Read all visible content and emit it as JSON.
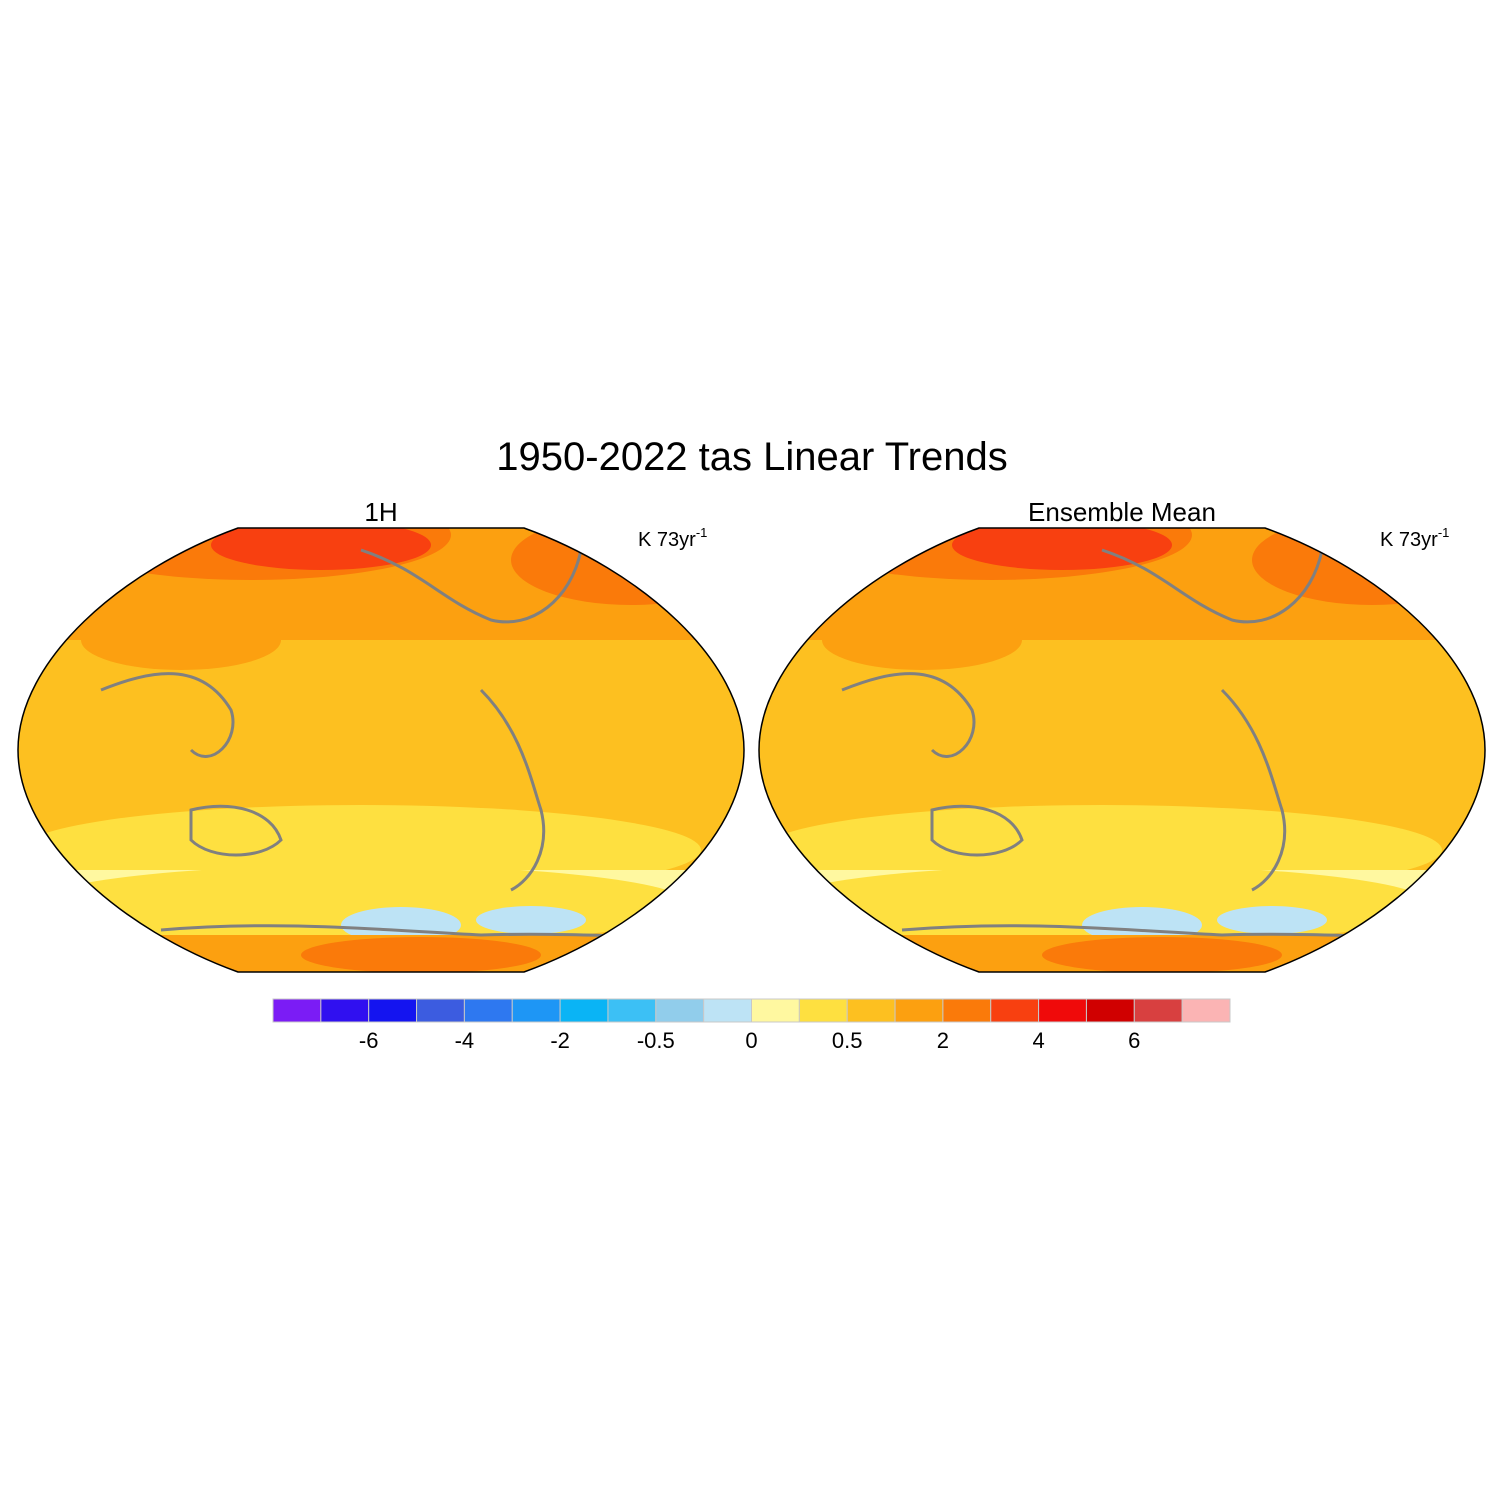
{
  "title": "1950-2022 tas Linear Trends",
  "panels": [
    {
      "title": "1H",
      "units": "K 73yr",
      "units_exponent": "-1"
    },
    {
      "title": "Ensemble Mean",
      "units": "K 73yr",
      "units_exponent": "-1"
    }
  ],
  "colorbar": {
    "colors": [
      "#7b1cf5",
      "#3010f0",
      "#1414f0",
      "#3c5ce0",
      "#2e78f0",
      "#1e96f5",
      "#0ab4f5",
      "#3cc0f5",
      "#91cdeb",
      "#bde3f5",
      "#fff8a0",
      "#fee040",
      "#fdc020",
      "#fca010",
      "#fa7a0a",
      "#f84010",
      "#f00a0a",
      "#d00000",
      "#d84040",
      "#fbb4b4"
    ],
    "labels": [
      -6,
      -4,
      -2,
      -0.5,
      0,
      0.5,
      2,
      4,
      6
    ]
  }
}
